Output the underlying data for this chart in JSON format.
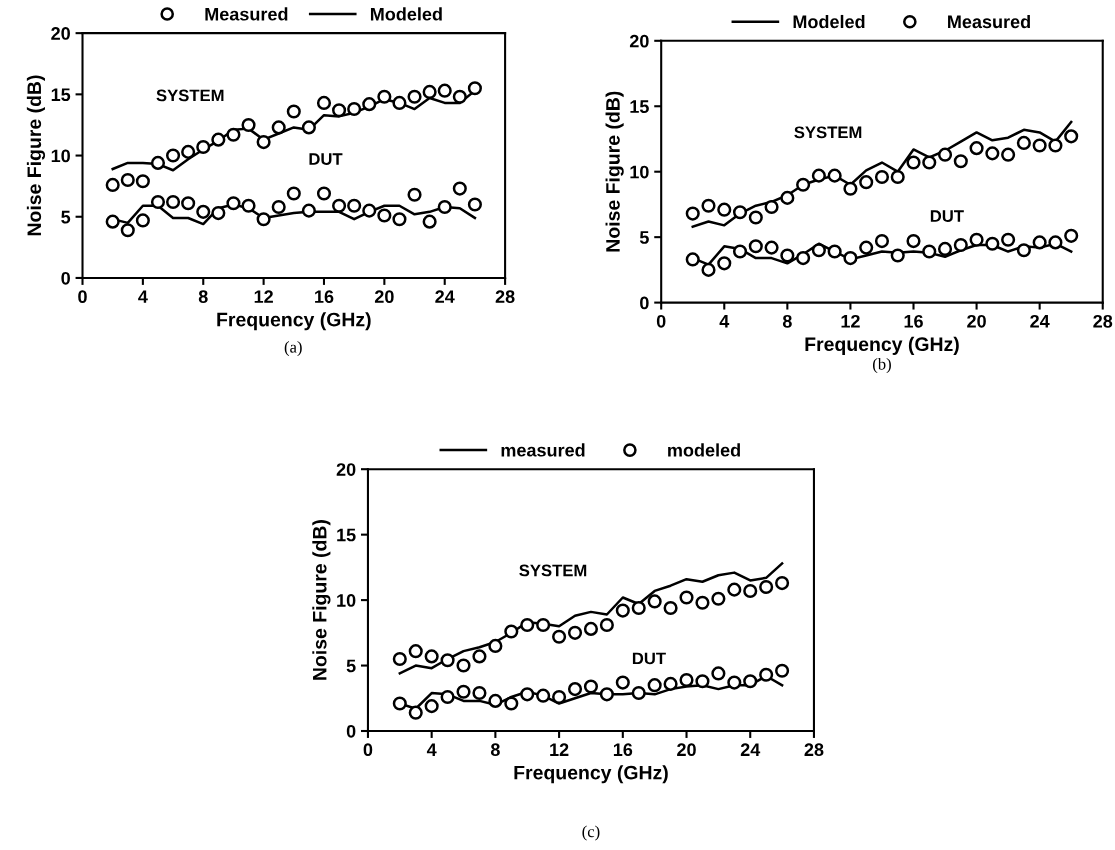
{
  "chart_data": [
    {
      "type": "line",
      "xlabel": "Frequency (GHz)",
      "ylabel": "Noise Figure (dB)",
      "xlim": [
        0,
        28
      ],
      "ylim": [
        0,
        20
      ],
      "xticks": [
        0,
        4,
        8,
        12,
        16,
        20,
        24,
        28
      ],
      "yticks": [
        0,
        5,
        10,
        15,
        20
      ],
      "legend": "top",
      "grid": false,
      "x": [
        2,
        3,
        4,
        5,
        6,
        7,
        8,
        9,
        10,
        11,
        12,
        13,
        14,
        15,
        16,
        17,
        18,
        19,
        20,
        21,
        22,
        23,
        24,
        25,
        26
      ],
      "annotations": [
        "SYSTEM",
        "DUT",
        "(a)"
      ],
      "series": [
        {
          "name": "Measured",
          "type": "scatter",
          "marker": "circle",
          "color": "#000000",
          "values": [
            7.6,
            8.0,
            7.9,
            9.4,
            10.0,
            10.3,
            10.7,
            11.3,
            11.7,
            12.5,
            11.1,
            12.3,
            13.6,
            12.3,
            14.3,
            13.7,
            13.8,
            14.2,
            14.8,
            14.3,
            14.8,
            15.2,
            15.3,
            14.8,
            15.5
          ]
        },
        {
          "name": "Modeled",
          "color": "#000000",
          "values": [
            8.9,
            9.4,
            9.4,
            9.3,
            8.8,
            9.7,
            10.5,
            11.2,
            12.1,
            12.2,
            11.3,
            11.8,
            12.3,
            12.1,
            13.3,
            13.2,
            13.5,
            14.0,
            14.6,
            14.3,
            13.8,
            14.7,
            14.3,
            14.3,
            15.3
          ]
        },
        {
          "type": "scatter",
          "marker": "circle",
          "color": "#000000",
          "values": [
            4.6,
            3.9,
            4.7,
            6.2,
            6.2,
            6.1,
            5.4,
            5.3,
            6.1,
            5.9,
            4.8,
            5.8,
            6.9,
            5.5,
            6.9,
            5.9,
            5.9,
            5.5,
            5.1,
            4.8,
            6.8,
            4.6,
            5.8,
            7.3,
            6.0
          ]
        },
        {
          "color": "#000000",
          "values": [
            4.8,
            4.5,
            5.9,
            5.9,
            4.9,
            4.9,
            4.4,
            5.7,
            6.0,
            5.7,
            4.9,
            5.1,
            5.3,
            5.4,
            5.4,
            5.4,
            4.8,
            5.4,
            5.9,
            5.9,
            5.2,
            5.4,
            5.8,
            5.7,
            4.9
          ]
        }
      ]
    },
    {
      "type": "line",
      "xlabel": "Frequency (GHz)",
      "ylabel": "Noise Figure (dB)",
      "xlim": [
        0,
        28
      ],
      "ylim": [
        0,
        20
      ],
      "xticks": [
        0,
        4,
        8,
        12,
        16,
        20,
        24,
        28
      ],
      "yticks": [
        0,
        5,
        10,
        15,
        20
      ],
      "legend": "top",
      "grid": false,
      "x": [
        2,
        3,
        4,
        5,
        6,
        7,
        8,
        9,
        10,
        11,
        12,
        13,
        14,
        15,
        16,
        17,
        18,
        19,
        20,
        21,
        22,
        23,
        24,
        25,
        26
      ],
      "annotations": [
        "SYSTEM",
        "DUT",
        "(b)"
      ],
      "series": [
        {
          "name": "Modeled",
          "color": "#000000",
          "values": [
            5.8,
            6.2,
            5.9,
            6.8,
            7.4,
            7.7,
            8.2,
            9.0,
            9.4,
            9.7,
            9.0,
            10.1,
            10.7,
            10.0,
            11.7,
            11.1,
            11.6,
            12.3,
            13.0,
            12.4,
            12.6,
            13.2,
            13.0,
            12.3,
            13.8
          ]
        },
        {
          "name": "Measured",
          "type": "scatter",
          "marker": "circle",
          "color": "#000000",
          "values": [
            6.8,
            7.4,
            7.1,
            6.9,
            6.5,
            7.3,
            8.0,
            9.0,
            9.7,
            9.7,
            8.7,
            9.2,
            9.6,
            9.6,
            10.7,
            10.7,
            11.3,
            10.8,
            11.8,
            11.4,
            11.3,
            12.2,
            12.0,
            12.0,
            12.7
          ]
        },
        {
          "color": "#000000",
          "values": [
            3.4,
            2.9,
            4.3,
            4.1,
            3.4,
            3.4,
            3.0,
            3.7,
            4.5,
            3.9,
            3.3,
            3.6,
            3.9,
            3.8,
            3.9,
            3.8,
            3.5,
            4.0,
            4.4,
            4.4,
            3.9,
            4.3,
            4.2,
            4.5,
            3.9
          ]
        },
        {
          "type": "scatter",
          "marker": "circle",
          "color": "#000000",
          "values": [
            3.3,
            2.5,
            3.0,
            3.9,
            4.3,
            4.2,
            3.6,
            3.4,
            4.0,
            3.9,
            3.4,
            4.2,
            4.7,
            3.6,
            4.7,
            3.9,
            4.1,
            4.4,
            4.8,
            4.5,
            4.8,
            4.0,
            4.6,
            4.6,
            5.1
          ]
        }
      ]
    },
    {
      "type": "line",
      "xlabel": "Frequency (GHz)",
      "ylabel": "Noise Figure (dB)",
      "xlim": [
        0,
        28
      ],
      "ylim": [
        0,
        20
      ],
      "xticks": [
        0,
        4,
        8,
        12,
        16,
        20,
        24,
        28
      ],
      "yticks": [
        0,
        5,
        10,
        15,
        20
      ],
      "legend": "top",
      "grid": false,
      "x": [
        2,
        3,
        4,
        5,
        6,
        7,
        8,
        9,
        10,
        11,
        12,
        13,
        14,
        15,
        16,
        17,
        18,
        19,
        20,
        21,
        22,
        23,
        24,
        25,
        26
      ],
      "annotations": [
        "SYSTEM",
        "DUT",
        "(c)"
      ],
      "series": [
        {
          "name": "measured",
          "color": "#000000",
          "values": [
            4.4,
            5.0,
            4.8,
            5.5,
            6.1,
            6.4,
            6.8,
            7.5,
            8.3,
            8.2,
            8.0,
            8.8,
            9.1,
            8.9,
            10.2,
            9.7,
            10.7,
            11.1,
            11.6,
            11.4,
            11.9,
            12.1,
            11.5,
            11.7,
            12.8
          ]
        },
        {
          "name": "modeled",
          "type": "scatter",
          "marker": "circle",
          "color": "#000000",
          "values": [
            5.5,
            6.1,
            5.7,
            5.4,
            5.0,
            5.7,
            6.5,
            7.6,
            8.1,
            8.1,
            7.2,
            7.5,
            7.8,
            8.1,
            9.2,
            9.4,
            9.9,
            9.4,
            10.2,
            9.8,
            10.1,
            10.8,
            10.7,
            11.0,
            11.3
          ]
        },
        {
          "color": "#000000",
          "values": [
            2.1,
            1.7,
            2.9,
            2.8,
            2.3,
            2.3,
            2.0,
            2.6,
            3.0,
            2.7,
            2.1,
            2.5,
            2.9,
            2.8,
            2.8,
            2.9,
            2.8,
            3.2,
            3.4,
            3.5,
            3.2,
            3.5,
            3.5,
            4.2,
            3.5
          ]
        },
        {
          "type": "scatter",
          "marker": "circle",
          "color": "#000000",
          "values": [
            2.1,
            1.4,
            1.9,
            2.6,
            3.0,
            2.9,
            2.3,
            2.1,
            2.8,
            2.7,
            2.6,
            3.2,
            3.4,
            2.8,
            3.7,
            2.9,
            3.5,
            3.6,
            3.9,
            3.8,
            4.4,
            3.7,
            3.8,
            4.3,
            4.6
          ]
        }
      ]
    }
  ]
}
